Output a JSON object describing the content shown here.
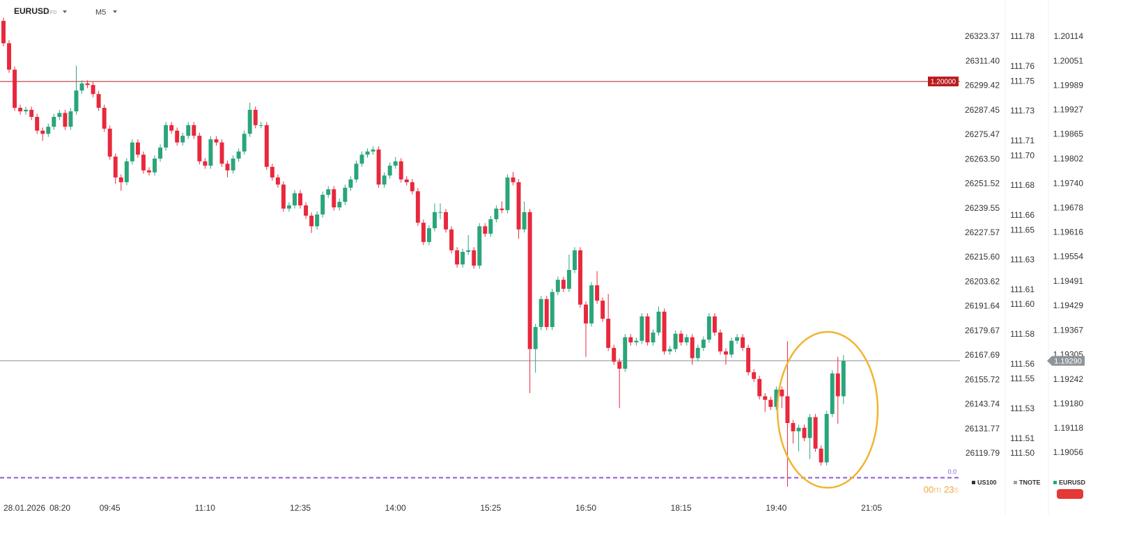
{
  "header": {
    "symbol": "EURUSD",
    "kind": "CFD",
    "timeframe": "M5"
  },
  "chart_data": {
    "type": "candlestick",
    "up_color": "#2aa57a",
    "down_color": "#e8283c",
    "xlim": [
      -0.62,
      170.8
    ],
    "x_date": "28.01.2026",
    "xticks": [
      {
        "value": 2,
        "label": "08:20"
      },
      {
        "value": 19,
        "label": "09:45"
      },
      {
        "value": 36,
        "label": "11:10"
      },
      {
        "value": 53,
        "label": "12:35"
      },
      {
        "value": 70,
        "label": "14:00"
      },
      {
        "value": 87,
        "label": "15:25"
      },
      {
        "value": 104,
        "label": "16:50"
      },
      {
        "value": 121,
        "label": "18:15"
      },
      {
        "value": 138,
        "label": "19:40"
      },
      {
        "value": 155,
        "label": "21:05"
      }
    ],
    "ylim": [
      1.18934,
      1.20207
    ],
    "yticks": [
      1.20114,
      1.20051,
      1.19989,
      1.19927,
      1.19865,
      1.19802,
      {
        "value": 1.1974,
        "label": "1.19740"
      },
      1.19678,
      1.19616,
      1.19554,
      1.19491,
      1.19429,
      1.19367,
      1.19305,
      1.19242,
      {
        "value": 1.1918,
        "label": "1.19180"
      },
      1.19118,
      1.19056
    ],
    "overlay_axes": [
      {
        "name": "US100",
        "color": "#333333",
        "ylim": [
          26096.67,
          26341.38
        ],
        "yticks": [
          26323.37,
          {
            "value": 26311.4,
            "label": "26311.40"
          },
          26299.42,
          26287.45,
          26275.47,
          {
            "value": 26263.5,
            "label": "26263.50"
          },
          26251.52,
          26239.55,
          26227.57,
          {
            "value": 26215.6,
            "label": "26215.60"
          },
          26203.62,
          26191.64,
          26179.67,
          26167.69,
          26155.72,
          26143.74,
          26131.77,
          26119.79
        ]
      },
      {
        "name": "TNOTE",
        "color": "#9aa5a8",
        "ylim": [
          111.4682,
          111.8048
        ],
        "yticks": [
          111.78,
          111.76,
          111.75,
          111.73,
          111.71,
          {
            "value": 111.7,
            "label": "111.70"
          },
          111.68,
          111.66,
          111.65,
          111.63,
          111.61,
          {
            "value": 111.6,
            "label": "111.60"
          },
          111.58,
          111.56,
          111.55,
          111.53,
          111.51,
          {
            "value": 111.5,
            "label": "111.50"
          }
        ]
      }
    ],
    "levels": [
      {
        "value": 1.2,
        "label": "1.20000",
        "color": "#b71c1c"
      },
      {
        "value": 1.1929,
        "label": "1.19290",
        "color": "#8e959a"
      }
    ],
    "fib_line": {
      "price": 1.18993,
      "label": "0.0",
      "color": "#8e5bd6"
    },
    "countdown": {
      "minutes": "00",
      "minutes_unit": "m",
      "seconds": "23",
      "seconds_unit": "s"
    },
    "series": [
      {
        "name": "EURUSD",
        "color": "#2aa57a",
        "values": [
          [
            1.20154,
            1.20162,
            1.20089,
            1.20097
          ],
          [
            1.20097,
            1.20105,
            1.20022,
            1.2003
          ],
          [
            1.2003,
            1.20038,
            1.19925,
            1.19933
          ],
          [
            1.19933,
            1.19941,
            1.19916,
            1.19924
          ],
          [
            1.19924,
            1.19936,
            1.19916,
            1.19928
          ],
          [
            1.19928,
            1.19936,
            1.19902,
            1.1991
          ],
          [
            1.1991,
            1.19918,
            1.19867,
            1.19875
          ],
          [
            1.19875,
            1.19883,
            1.19849,
            1.19867
          ],
          [
            1.19867,
            1.19893,
            1.19859,
            1.19885
          ],
          [
            1.19885,
            1.19918,
            1.19877,
            1.1991
          ],
          [
            1.1991,
            1.19928,
            1.19902,
            1.1992
          ],
          [
            1.1992,
            1.19928,
            1.19877,
            1.19885
          ],
          [
            1.19885,
            1.19932,
            1.19877,
            1.19924
          ],
          [
            1.19924,
            1.2004,
            1.19916,
            1.19977
          ],
          [
            1.19977,
            1.20003,
            1.19969,
            1.19995
          ],
          [
            1.19995,
            1.20003,
            1.19983,
            1.19991
          ],
          [
            1.19991,
            1.19999,
            1.1996,
            1.19968
          ],
          [
            1.19968,
            1.19976,
            1.19925,
            1.19933
          ],
          [
            1.19933,
            1.19941,
            1.19872,
            1.1988
          ],
          [
            1.1988,
            1.19888,
            1.19801,
            1.19809
          ],
          [
            1.19809,
            1.19817,
            1.1974,
            1.19756
          ],
          [
            1.19756,
            1.19764,
            1.19722,
            1.19744
          ],
          [
            1.19744,
            1.19805,
            1.19736,
            1.19797
          ],
          [
            1.19797,
            1.19853,
            1.19789,
            1.19845
          ],
          [
            1.19845,
            1.19853,
            1.19806,
            1.19814
          ],
          [
            1.19814,
            1.19822,
            1.19766,
            1.19774
          ],
          [
            1.19774,
            1.19782,
            1.19761,
            1.19769
          ],
          [
            1.19769,
            1.19812,
            1.19761,
            1.19804
          ],
          [
            1.19804,
            1.1984,
            1.19796,
            1.19832
          ],
          [
            1.19832,
            1.19897,
            1.19824,
            1.19889
          ],
          [
            1.19889,
            1.19897,
            1.19867,
            1.19875
          ],
          [
            1.19875,
            1.19883,
            1.19837,
            1.19845
          ],
          [
            1.19845,
            1.1987,
            1.19837,
            1.19862
          ],
          [
            1.19862,
            1.19897,
            1.19854,
            1.19889
          ],
          [
            1.19889,
            1.19897,
            1.19854,
            1.19862
          ],
          [
            1.19862,
            1.1987,
            1.19789,
            1.19797
          ],
          [
            1.19797,
            1.19805,
            1.19778,
            1.19786
          ],
          [
            1.19786,
            1.19861,
            1.19778,
            1.19853
          ],
          [
            1.19853,
            1.19861,
            1.19837,
            1.19845
          ],
          [
            1.19845,
            1.19853,
            1.19783,
            1.19791
          ],
          [
            1.19791,
            1.19799,
            1.19756,
            1.19774
          ],
          [
            1.19774,
            1.19812,
            1.19766,
            1.19804
          ],
          [
            1.19804,
            1.1983,
            1.19796,
            1.19822
          ],
          [
            1.19822,
            1.19875,
            1.19814,
            1.19867
          ],
          [
            1.19867,
            1.19946,
            1.19859,
            1.19928
          ],
          [
            1.19928,
            1.19936,
            1.19881,
            1.19889
          ],
          [
            1.19889,
            1.19897,
            1.19881,
            1.19889
          ],
          [
            1.19889,
            1.19897,
            1.19775,
            1.19783
          ],
          [
            1.19783,
            1.19791,
            1.19748,
            1.19756
          ],
          [
            1.19756,
            1.19764,
            1.1973,
            1.19738
          ],
          [
            1.19738,
            1.19746,
            1.19669,
            1.19677
          ],
          [
            1.19677,
            1.19693,
            1.19669,
            1.19685
          ],
          [
            1.19685,
            1.19724,
            1.19677,
            1.19716
          ],
          [
            1.19716,
            1.19724,
            1.19677,
            1.19685
          ],
          [
            1.19685,
            1.19693,
            1.19651,
            1.19659
          ],
          [
            1.19659,
            1.19667,
            1.19615,
            1.19632
          ],
          [
            1.19632,
            1.1967,
            1.19624,
            1.19662
          ],
          [
            1.19662,
            1.1972,
            1.19654,
            1.19712
          ],
          [
            1.19712,
            1.19734,
            1.19704,
            1.19726
          ],
          [
            1.19726,
            1.19734,
            1.19672,
            1.1968
          ],
          [
            1.1968,
            1.19702,
            1.19672,
            1.19694
          ],
          [
            1.19694,
            1.19738,
            1.19686,
            1.1973
          ],
          [
            1.1973,
            1.19759,
            1.19722,
            1.19751
          ],
          [
            1.19751,
            1.19799,
            1.19743,
            1.19791
          ],
          [
            1.19791,
            1.19822,
            1.19783,
            1.19814
          ],
          [
            1.19814,
            1.1983,
            1.19806,
            1.19822
          ],
          [
            1.19822,
            1.19835,
            1.19814,
            1.19827
          ],
          [
            1.19827,
            1.19835,
            1.1973,
            1.19738
          ],
          [
            1.19738,
            1.19769,
            1.1973,
            1.19761
          ],
          [
            1.19761,
            1.19794,
            1.19753,
            1.19786
          ],
          [
            1.19786,
            1.19808,
            1.19778,
            1.19797
          ],
          [
            1.19797,
            1.19805,
            1.19743,
            1.19751
          ],
          [
            1.19751,
            1.19759,
            1.19736,
            1.19744
          ],
          [
            1.19744,
            1.19752,
            1.19713,
            1.19721
          ],
          [
            1.19721,
            1.19729,
            1.19633,
            1.19641
          ],
          [
            1.19641,
            1.19649,
            1.19584,
            1.19592
          ],
          [
            1.19592,
            1.19635,
            1.19584,
            1.19627
          ],
          [
            1.19627,
            1.1969,
            1.19619,
            1.19668
          ],
          [
            1.19668,
            1.1969,
            1.1965,
            1.19668
          ],
          [
            1.19668,
            1.19676,
            1.19616,
            1.19624
          ],
          [
            1.19624,
            1.19632,
            1.19563,
            1.19571
          ],
          [
            1.19571,
            1.19579,
            1.19527,
            1.19535
          ],
          [
            1.19535,
            1.19575,
            1.19527,
            1.19567
          ],
          [
            1.19567,
            1.1961,
            1.19559,
            1.19571
          ],
          [
            1.19571,
            1.19579,
            1.19524,
            1.19532
          ],
          [
            1.19532,
            1.1964,
            1.19524,
            1.19632
          ],
          [
            1.19632,
            1.1964,
            1.19605,
            1.19613
          ],
          [
            1.19613,
            1.19658,
            1.19605,
            1.1965
          ],
          [
            1.1965,
            1.19685,
            1.19642,
            1.19677
          ],
          [
            1.19677,
            1.19695,
            1.19665,
            1.19673
          ],
          [
            1.19673,
            1.19764,
            1.19665,
            1.19756
          ],
          [
            1.19756,
            1.1977,
            1.19736,
            1.19744
          ],
          [
            1.19744,
            1.19752,
            1.196,
            1.19624
          ],
          [
            1.19624,
            1.19695,
            1.19616,
            1.19668
          ],
          [
            1.19668,
            1.19676,
            1.19208,
            1.1932
          ],
          [
            1.1932,
            1.19384,
            1.1926,
            1.19376
          ],
          [
            1.19376,
            1.19455,
            1.19368,
            1.19447
          ],
          [
            1.19447,
            1.19455,
            1.19368,
            1.19376
          ],
          [
            1.19376,
            1.19473,
            1.19368,
            1.19465
          ],
          [
            1.19465,
            1.19504,
            1.19457,
            1.19496
          ],
          [
            1.19496,
            1.19504,
            1.19465,
            1.19473
          ],
          [
            1.19473,
            1.1956,
            1.19465,
            1.19521
          ],
          [
            1.19521,
            1.19579,
            1.19513,
            1.19571
          ],
          [
            1.19571,
            1.19579,
            1.19425,
            1.19433
          ],
          [
            1.19433,
            1.19441,
            1.193,
            1.19385
          ],
          [
            1.19385,
            1.1949,
            1.19377,
            1.19482
          ],
          [
            1.19482,
            1.19518,
            1.19435,
            1.19443
          ],
          [
            1.19443,
            1.19451,
            1.19389,
            1.19397
          ],
          [
            1.19397,
            1.1946,
            1.19315,
            1.19323
          ],
          [
            1.19323,
            1.19331,
            1.1928,
            1.19288
          ],
          [
            1.19288,
            1.19296,
            1.1917,
            1.1927
          ],
          [
            1.1927,
            1.19358,
            1.19262,
            1.1935
          ],
          [
            1.1935,
            1.19358,
            1.19329,
            1.19337
          ],
          [
            1.19337,
            1.19349,
            1.19329,
            1.19341
          ],
          [
            1.19341,
            1.19411,
            1.19333,
            1.19403
          ],
          [
            1.19403,
            1.19411,
            1.19329,
            1.19337
          ],
          [
            1.19337,
            1.1937,
            1.19329,
            1.19362
          ],
          [
            1.19362,
            1.19428,
            1.19354,
            1.19415
          ],
          [
            1.19415,
            1.19423,
            1.19306,
            1.19314
          ],
          [
            1.19314,
            1.19328,
            1.19306,
            1.1932
          ],
          [
            1.1932,
            1.19367,
            1.19312,
            1.19359
          ],
          [
            1.19359,
            1.19367,
            1.19329,
            1.19337
          ],
          [
            1.19337,
            1.19358,
            1.19329,
            1.1935
          ],
          [
            1.1935,
            1.19358,
            1.1928,
            1.19297
          ],
          [
            1.19297,
            1.19331,
            1.19289,
            1.19323
          ],
          [
            1.19323,
            1.19352,
            1.19315,
            1.19344
          ],
          [
            1.19344,
            1.19411,
            1.19336,
            1.19403
          ],
          [
            1.19403,
            1.19411,
            1.19354,
            1.19362
          ],
          [
            1.19362,
            1.1937,
            1.19306,
            1.19314
          ],
          [
            1.19314,
            1.19322,
            1.1928,
            1.19306
          ],
          [
            1.19306,
            1.19349,
            1.19298,
            1.19341
          ],
          [
            1.19341,
            1.19358,
            1.19333,
            1.1935
          ],
          [
            1.1935,
            1.19358,
            1.19315,
            1.19323
          ],
          [
            1.19323,
            1.19331,
            1.19253,
            1.19261
          ],
          [
            1.19261,
            1.19269,
            1.19236,
            1.19244
          ],
          [
            1.19244,
            1.19252,
            1.19192,
            1.192
          ],
          [
            1.192,
            1.19208,
            1.1916,
            1.19191
          ],
          [
            1.19191,
            1.19199,
            1.19165,
            1.19173
          ],
          [
            1.19173,
            1.19225,
            1.19165,
            1.19217
          ],
          [
            1.19217,
            1.19225,
            1.1917,
            1.192
          ],
          [
            1.192,
            1.1934,
            1.1897,
            1.19132
          ],
          [
            1.19132,
            1.1914,
            1.1908,
            1.19111
          ],
          [
            1.19111,
            1.19128,
            1.1906,
            1.1912
          ],
          [
            1.1912,
            1.19128,
            1.19086,
            1.19094
          ],
          [
            1.19094,
            1.19155,
            1.1904,
            1.19147
          ],
          [
            1.19147,
            1.19155,
            1.19059,
            1.19067
          ],
          [
            1.19067,
            1.19075,
            1.19024,
            1.19032
          ],
          [
            1.19032,
            1.19163,
            1.19024,
            1.19155
          ],
          [
            1.19155,
            1.19266,
            1.19147,
            1.19258
          ],
          [
            1.19258,
            1.193,
            1.1913,
            1.192
          ],
          [
            1.192,
            1.19305,
            1.1918,
            1.1929
          ]
        ]
      }
    ]
  }
}
